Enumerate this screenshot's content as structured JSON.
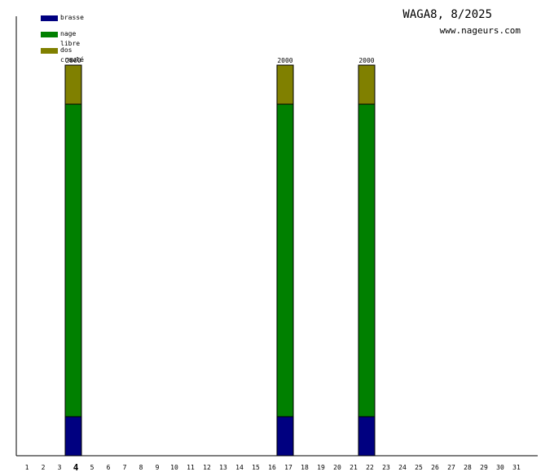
{
  "chart_data": {
    "type": "bar",
    "title": "WAGA8, 8/2025",
    "subtitle": "www.nageurs.com",
    "categories": [
      "1",
      "2",
      "3",
      "4",
      "5",
      "6",
      "7",
      "8",
      "9",
      "10",
      "11",
      "12",
      "13",
      "14",
      "15",
      "16",
      "17",
      "18",
      "19",
      "20",
      "21",
      "22",
      "23",
      "24",
      "25",
      "26",
      "27",
      "28",
      "29",
      "30",
      "31"
    ],
    "highlighted_category": "4",
    "stacked": true,
    "ylim": [
      0,
      2000
    ],
    "series": [
      {
        "name": "brasse",
        "color": "#000080",
        "values": [
          0,
          0,
          0,
          200,
          0,
          0,
          0,
          0,
          0,
          0,
          0,
          0,
          0,
          0,
          0,
          0,
          200,
          0,
          0,
          0,
          0,
          200,
          0,
          0,
          0,
          0,
          0,
          0,
          0,
          0,
          0
        ]
      },
      {
        "name": "nage libre",
        "color": "#008000",
        "values": [
          0,
          0,
          0,
          1600,
          0,
          0,
          0,
          0,
          0,
          0,
          0,
          0,
          0,
          0,
          0,
          0,
          1600,
          0,
          0,
          0,
          0,
          1600,
          0,
          0,
          0,
          0,
          0,
          0,
          0,
          0,
          0
        ]
      },
      {
        "name": "dos crawlé",
        "color": "#808000",
        "values": [
          0,
          0,
          0,
          200,
          0,
          0,
          0,
          0,
          0,
          0,
          0,
          0,
          0,
          0,
          0,
          0,
          200,
          0,
          0,
          0,
          0,
          200,
          0,
          0,
          0,
          0,
          0,
          0,
          0,
          0,
          0
        ]
      }
    ],
    "totals": [
      {
        "category": "4",
        "label": "2000"
      },
      {
        "category": "17",
        "label": "2000"
      },
      {
        "category": "22",
        "label": "2000"
      }
    ],
    "grid": false,
    "legend_position": "top-left"
  }
}
